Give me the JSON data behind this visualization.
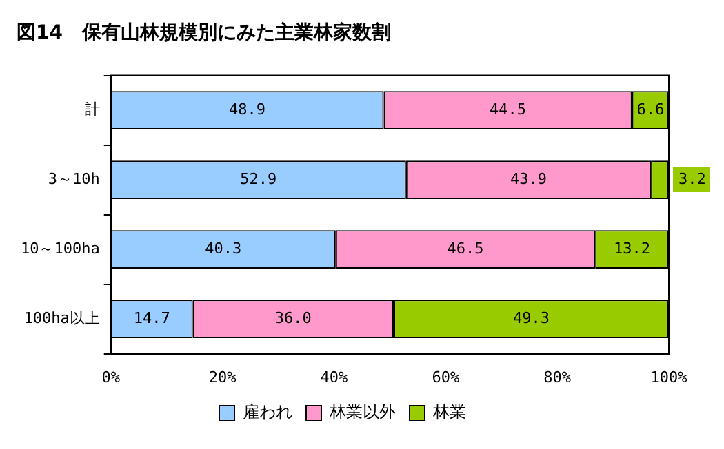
{
  "chart_data": {
    "type": "bar",
    "orientation": "horizontal",
    "stacked": true,
    "title": "図14　保有山林規模別にみた主業林家数割",
    "categories": [
      "計",
      "3～10h",
      "10～100ha",
      "100ha以上"
    ],
    "series": [
      {
        "name": "雇われ",
        "color": "#99ccff",
        "values": [
          48.9,
          52.9,
          40.3,
          14.7
        ],
        "value_labels": [
          "48.9",
          "52.9",
          "40.3",
          "14.7"
        ]
      },
      {
        "name": "林業以外",
        "color": "#ff99cc",
        "values": [
          44.5,
          43.9,
          46.5,
          36.0
        ],
        "value_labels": [
          "44.5",
          "43.9",
          "46.5",
          "36.0"
        ]
      },
      {
        "name": "林業",
        "color": "#99cc00",
        "values": [
          6.6,
          3.2,
          13.2,
          49.3
        ],
        "value_labels": [
          "6.6",
          "3.2",
          "13.2",
          "49.3"
        ]
      }
    ],
    "xlim": [
      0,
      100
    ],
    "xticks": [
      {
        "value": 0,
        "label": "0%"
      },
      {
        "value": 20,
        "label": "20%"
      },
      {
        "value": 40,
        "label": "40%"
      },
      {
        "value": 60,
        "label": "60%"
      },
      {
        "value": 80,
        "label": "80%"
      },
      {
        "value": 100,
        "label": "100%"
      }
    ],
    "grid": false,
    "legend": "bottom"
  }
}
